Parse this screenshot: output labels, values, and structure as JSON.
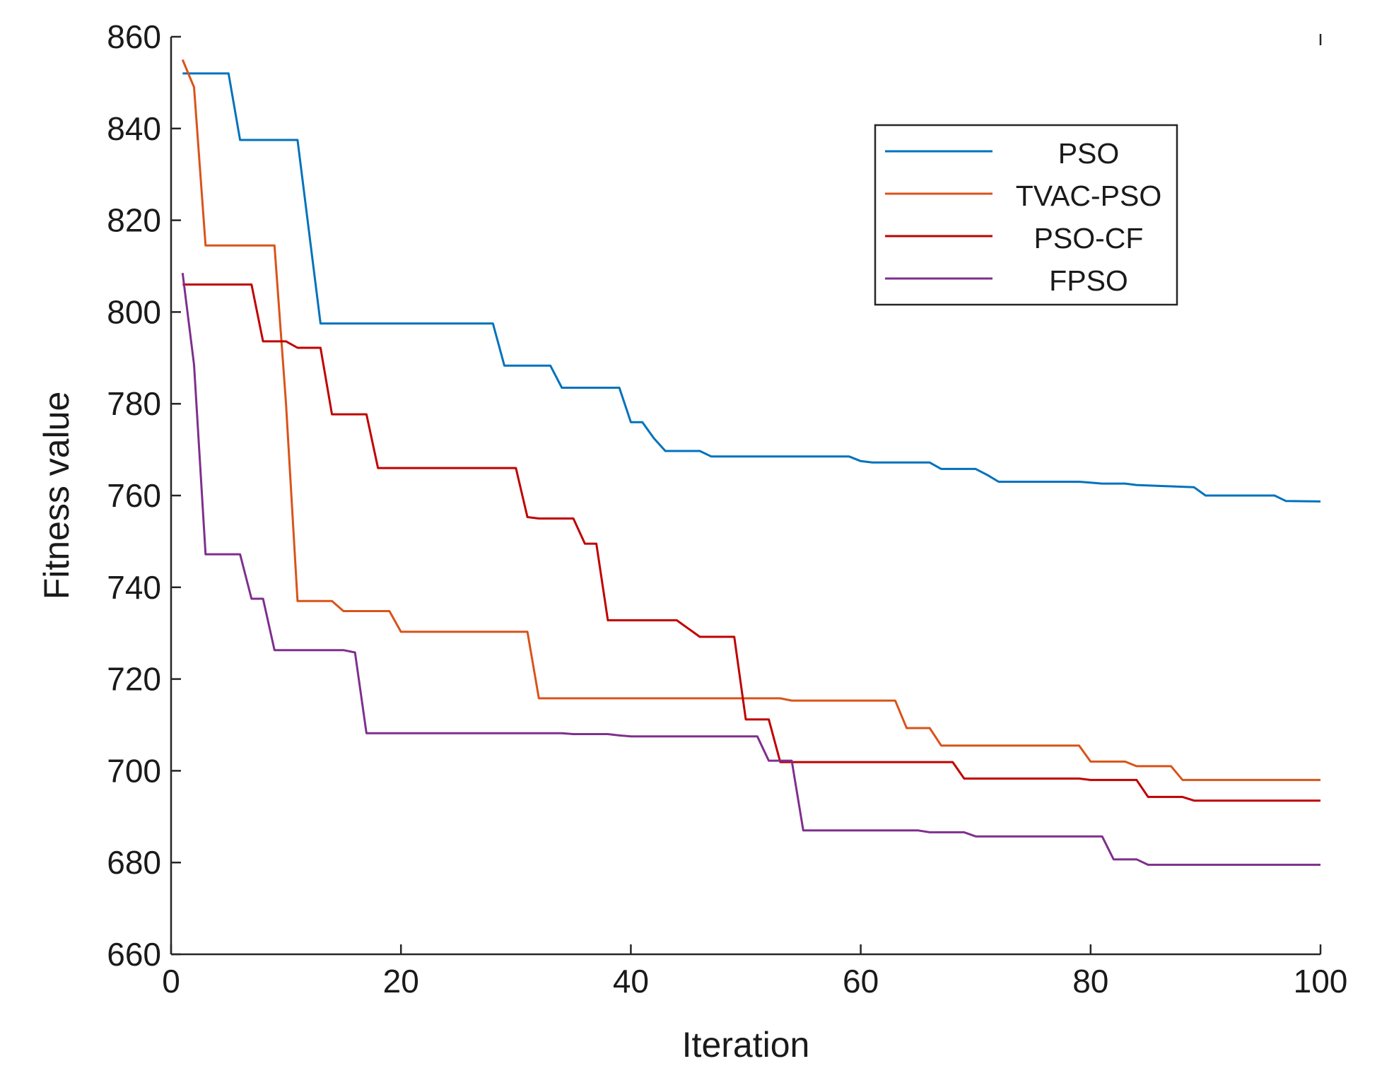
{
  "chart_data": {
    "type": "line",
    "title": "",
    "xlabel": "Iteration",
    "ylabel": "Fitness  value",
    "xlim": [
      0,
      100
    ],
    "ylim": [
      660,
      860
    ],
    "xticks": [
      "0",
      "20",
      "40",
      "60",
      "80",
      "100"
    ],
    "yticks": [
      "660",
      "680",
      "700",
      "720",
      "740",
      "760",
      "780",
      "800",
      "820",
      "840",
      "860"
    ],
    "grid": false,
    "legend_position": "top-right",
    "series": [
      {
        "name": "PSO",
        "color": "#0072BD",
        "points": [
          [
            1,
            852
          ],
          [
            5,
            852
          ],
          [
            6,
            837.5
          ],
          [
            11,
            837.5
          ],
          [
            13,
            797.5
          ],
          [
            28,
            797.5
          ],
          [
            29,
            788.3
          ],
          [
            33,
            788.3
          ],
          [
            34,
            783.5
          ],
          [
            39,
            783.5
          ],
          [
            40,
            776
          ],
          [
            41,
            776
          ],
          [
            42,
            772.5
          ],
          [
            43,
            769.7
          ],
          [
            46,
            769.7
          ],
          [
            47,
            768.5
          ],
          [
            59,
            768.5
          ],
          [
            60,
            767.5
          ],
          [
            61,
            767.2
          ],
          [
            66,
            767.2
          ],
          [
            67,
            765.8
          ],
          [
            70,
            765.8
          ],
          [
            71,
            764.5
          ],
          [
            72,
            763
          ],
          [
            79,
            763
          ],
          [
            80,
            762.8
          ],
          [
            81,
            762.6
          ],
          [
            83,
            762.6
          ],
          [
            84,
            762.3
          ],
          [
            87,
            762
          ],
          [
            89,
            761.8
          ],
          [
            90,
            760
          ],
          [
            96,
            760
          ],
          [
            97,
            758.8
          ],
          [
            100,
            758.7
          ]
        ]
      },
      {
        "name": "TVAC-PSO",
        "color": "#D95319",
        "points": [
          [
            1,
            855
          ],
          [
            2,
            849
          ],
          [
            3,
            814.5
          ],
          [
            9,
            814.5
          ],
          [
            10,
            780
          ],
          [
            11,
            737
          ],
          [
            14,
            737
          ],
          [
            15,
            734.8
          ],
          [
            19,
            734.8
          ],
          [
            20,
            730.3
          ],
          [
            31,
            730.3
          ],
          [
            32,
            715.8
          ],
          [
            53,
            715.8
          ],
          [
            54,
            715.3
          ],
          [
            63,
            715.3
          ],
          [
            64,
            709.3
          ],
          [
            66,
            709.3
          ],
          [
            67,
            705.5
          ],
          [
            79,
            705.5
          ],
          [
            80,
            702
          ],
          [
            83,
            702
          ],
          [
            84,
            701
          ],
          [
            87,
            701
          ],
          [
            88,
            698
          ],
          [
            100,
            698
          ]
        ]
      },
      {
        "name": "PSO-CF",
        "color": "#C00000",
        "points": [
          [
            1,
            806
          ],
          [
            7,
            806
          ],
          [
            8,
            793.6
          ],
          [
            10,
            793.6
          ],
          [
            11,
            792.2
          ],
          [
            13,
            792.2
          ],
          [
            14,
            777.7
          ],
          [
            17,
            777.7
          ],
          [
            18,
            766
          ],
          [
            30,
            766
          ],
          [
            31,
            755.3
          ],
          [
            32,
            755
          ],
          [
            35,
            755
          ],
          [
            36,
            749.5
          ],
          [
            37,
            749.5
          ],
          [
            38,
            732.8
          ],
          [
            44,
            732.8
          ],
          [
            45,
            731
          ],
          [
            46,
            729.2
          ],
          [
            49,
            729.2
          ],
          [
            50,
            711.2
          ],
          [
            52,
            711.2
          ],
          [
            53,
            701.9
          ],
          [
            68,
            701.9
          ],
          [
            69,
            698.3
          ],
          [
            79,
            698.3
          ],
          [
            80,
            698
          ],
          [
            84,
            698
          ],
          [
            85,
            694.3
          ],
          [
            88,
            694.3
          ],
          [
            89,
            693.5
          ],
          [
            100,
            693.5
          ]
        ]
      },
      {
        "name": "FPSO",
        "color": "#7E2F8E",
        "points": [
          [
            1,
            808.5
          ],
          [
            2,
            788.5
          ],
          [
            3,
            747.2
          ],
          [
            6,
            747.2
          ],
          [
            7,
            737.5
          ],
          [
            8,
            737.5
          ],
          [
            9,
            726.3
          ],
          [
            15,
            726.3
          ],
          [
            16,
            725.8
          ],
          [
            17,
            708.2
          ],
          [
            34,
            708.2
          ],
          [
            35,
            708
          ],
          [
            38,
            708
          ],
          [
            39,
            707.7
          ],
          [
            40,
            707.5
          ],
          [
            51,
            707.5
          ],
          [
            52,
            702.2
          ],
          [
            54,
            702.2
          ],
          [
            55,
            687
          ],
          [
            65,
            687
          ],
          [
            66,
            686.6
          ],
          [
            69,
            686.6
          ],
          [
            70,
            685.7
          ],
          [
            81,
            685.7
          ],
          [
            82,
            680.7
          ],
          [
            84,
            680.7
          ],
          [
            85,
            679.5
          ],
          [
            100,
            679.5
          ]
        ]
      }
    ]
  }
}
